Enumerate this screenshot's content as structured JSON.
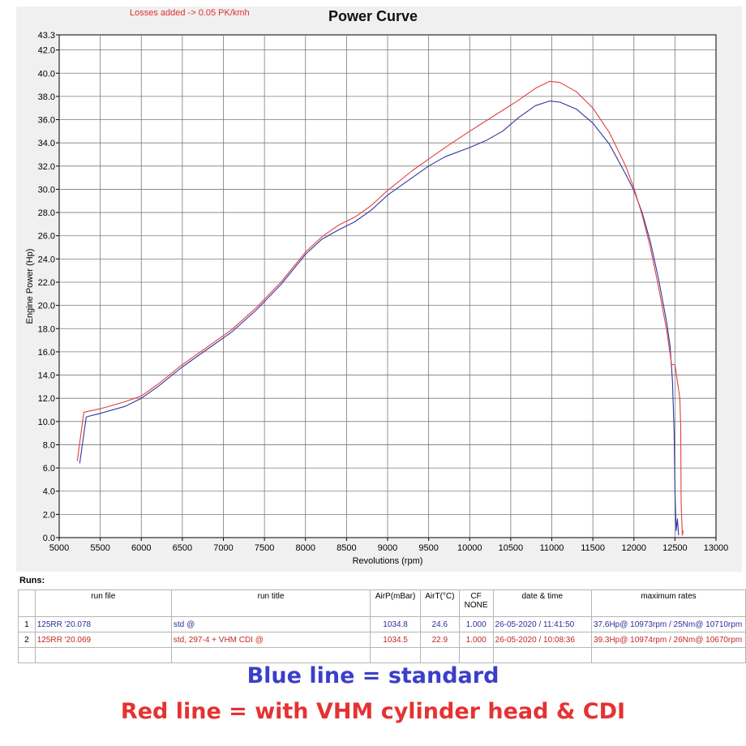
{
  "chart_data": {
    "type": "line",
    "title": "Power Curve",
    "note": "Losses added -> 0.05 PK/kmh",
    "xlabel": "Revolutions (rpm)",
    "ylabel": "Engine Power (Hp)",
    "xlim": [
      5000,
      13000
    ],
    "ylim": [
      0,
      43.3
    ],
    "xticks": [
      5000,
      5500,
      6000,
      6500,
      7000,
      7500,
      8000,
      8500,
      9000,
      9500,
      10000,
      10500,
      11000,
      11500,
      12000,
      12500,
      13000
    ],
    "yticks": [
      0.0,
      2.0,
      4.0,
      6.0,
      8.0,
      10.0,
      12.0,
      14.0,
      16.0,
      18.0,
      20.0,
      22.0,
      24.0,
      26.0,
      28.0,
      30.0,
      32.0,
      34.0,
      36.0,
      38.0,
      40.0,
      42.0,
      43.3
    ],
    "grid": true,
    "series": [
      {
        "color": "#3035a0",
        "points": [
          [
            5250,
            6.4
          ],
          [
            5330,
            10.4
          ],
          [
            5500,
            10.7
          ],
          [
            5800,
            11.3
          ],
          [
            6000,
            12.0
          ],
          [
            6200,
            13.0
          ],
          [
            6500,
            14.7
          ],
          [
            6800,
            16.2
          ],
          [
            7100,
            17.7
          ],
          [
            7400,
            19.6
          ],
          [
            7700,
            21.8
          ],
          [
            8000,
            24.4
          ],
          [
            8200,
            25.7
          ],
          [
            8400,
            26.5
          ],
          [
            8600,
            27.2
          ],
          [
            8800,
            28.2
          ],
          [
            9000,
            29.5
          ],
          [
            9300,
            31.0
          ],
          [
            9500,
            32.0
          ],
          [
            9700,
            32.8
          ],
          [
            10000,
            33.6
          ],
          [
            10200,
            34.2
          ],
          [
            10400,
            35.0
          ],
          [
            10600,
            36.2
          ],
          [
            10800,
            37.2
          ],
          [
            10973,
            37.6
          ],
          [
            11100,
            37.5
          ],
          [
            11300,
            36.9
          ],
          [
            11500,
            35.7
          ],
          [
            11700,
            33.9
          ],
          [
            11900,
            31.3
          ],
          [
            12000,
            29.9
          ],
          [
            12100,
            28.0
          ],
          [
            12200,
            25.5
          ],
          [
            12300,
            22.3
          ],
          [
            12400,
            18.5
          ],
          [
            12440,
            16.5
          ],
          [
            12470,
            13.5
          ],
          [
            12490,
            9.0
          ],
          [
            12500,
            4.0
          ],
          [
            12515,
            0.6
          ],
          [
            12530,
            1.6
          ],
          [
            12545,
            0.2
          ]
        ]
      },
      {
        "color": "#e04040",
        "points": [
          [
            5220,
            6.6
          ],
          [
            5300,
            10.8
          ],
          [
            5500,
            11.1
          ],
          [
            5800,
            11.7
          ],
          [
            6000,
            12.2
          ],
          [
            6200,
            13.2
          ],
          [
            6500,
            14.9
          ],
          [
            6800,
            16.4
          ],
          [
            7100,
            17.9
          ],
          [
            7400,
            19.8
          ],
          [
            7700,
            22.0
          ],
          [
            8000,
            24.6
          ],
          [
            8200,
            25.9
          ],
          [
            8400,
            26.9
          ],
          [
            8600,
            27.6
          ],
          [
            8800,
            28.6
          ],
          [
            9000,
            29.9
          ],
          [
            9300,
            31.6
          ],
          [
            9500,
            32.6
          ],
          [
            9700,
            33.6
          ],
          [
            10000,
            35.0
          ],
          [
            10200,
            35.9
          ],
          [
            10400,
            36.8
          ],
          [
            10600,
            37.7
          ],
          [
            10800,
            38.7
          ],
          [
            10974,
            39.3
          ],
          [
            11100,
            39.2
          ],
          [
            11300,
            38.4
          ],
          [
            11500,
            37.0
          ],
          [
            11700,
            34.9
          ],
          [
            11900,
            32.0
          ],
          [
            12000,
            30.1
          ],
          [
            12100,
            27.8
          ],
          [
            12200,
            25.0
          ],
          [
            12300,
            21.6
          ],
          [
            12400,
            17.8
          ],
          [
            12460,
            14.9
          ],
          [
            12500,
            14.9
          ],
          [
            12560,
            12.0
          ],
          [
            12570,
            9.5
          ],
          [
            12575,
            3.0
          ],
          [
            12590,
            0.2
          ],
          [
            12600,
            0.6
          ]
        ]
      }
    ]
  },
  "runs": {
    "label": "Runs:",
    "headers": {
      "run_file": "run file",
      "run_title": "run title",
      "airp": "AirP(mBar)",
      "airt": "AirT(°C)",
      "cf_top": "CF",
      "cf_bottom": "NONE",
      "datetime": "date & time",
      "max": "maximum rates"
    },
    "rows": [
      {
        "idx": "1",
        "file": "125RR '20.078",
        "title": "std   @",
        "airp": "1034.8",
        "airt": "24.6",
        "cf": "1.000",
        "datetime": "26-05-2020 / 11:41:50",
        "max": "37.6Hp@ 10973rpm / 25Nm@ 10710rpm",
        "color": "#2a2f9a"
      },
      {
        "idx": "2",
        "file": "125RR '20.069",
        "title": "std, 297-4 + VHM CDI    @",
        "airp": "1034.5",
        "airt": "22.9",
        "cf": "1.000",
        "datetime": "26-05-2020 / 10:08:36",
        "max": "39.3Hp@ 10974rpm / 26Nm@ 10670rpm",
        "color": "#c02828"
      }
    ]
  },
  "captions": {
    "blue": "Blue line = standard",
    "red": "Red line = with VHM cylinder head & CDI"
  }
}
